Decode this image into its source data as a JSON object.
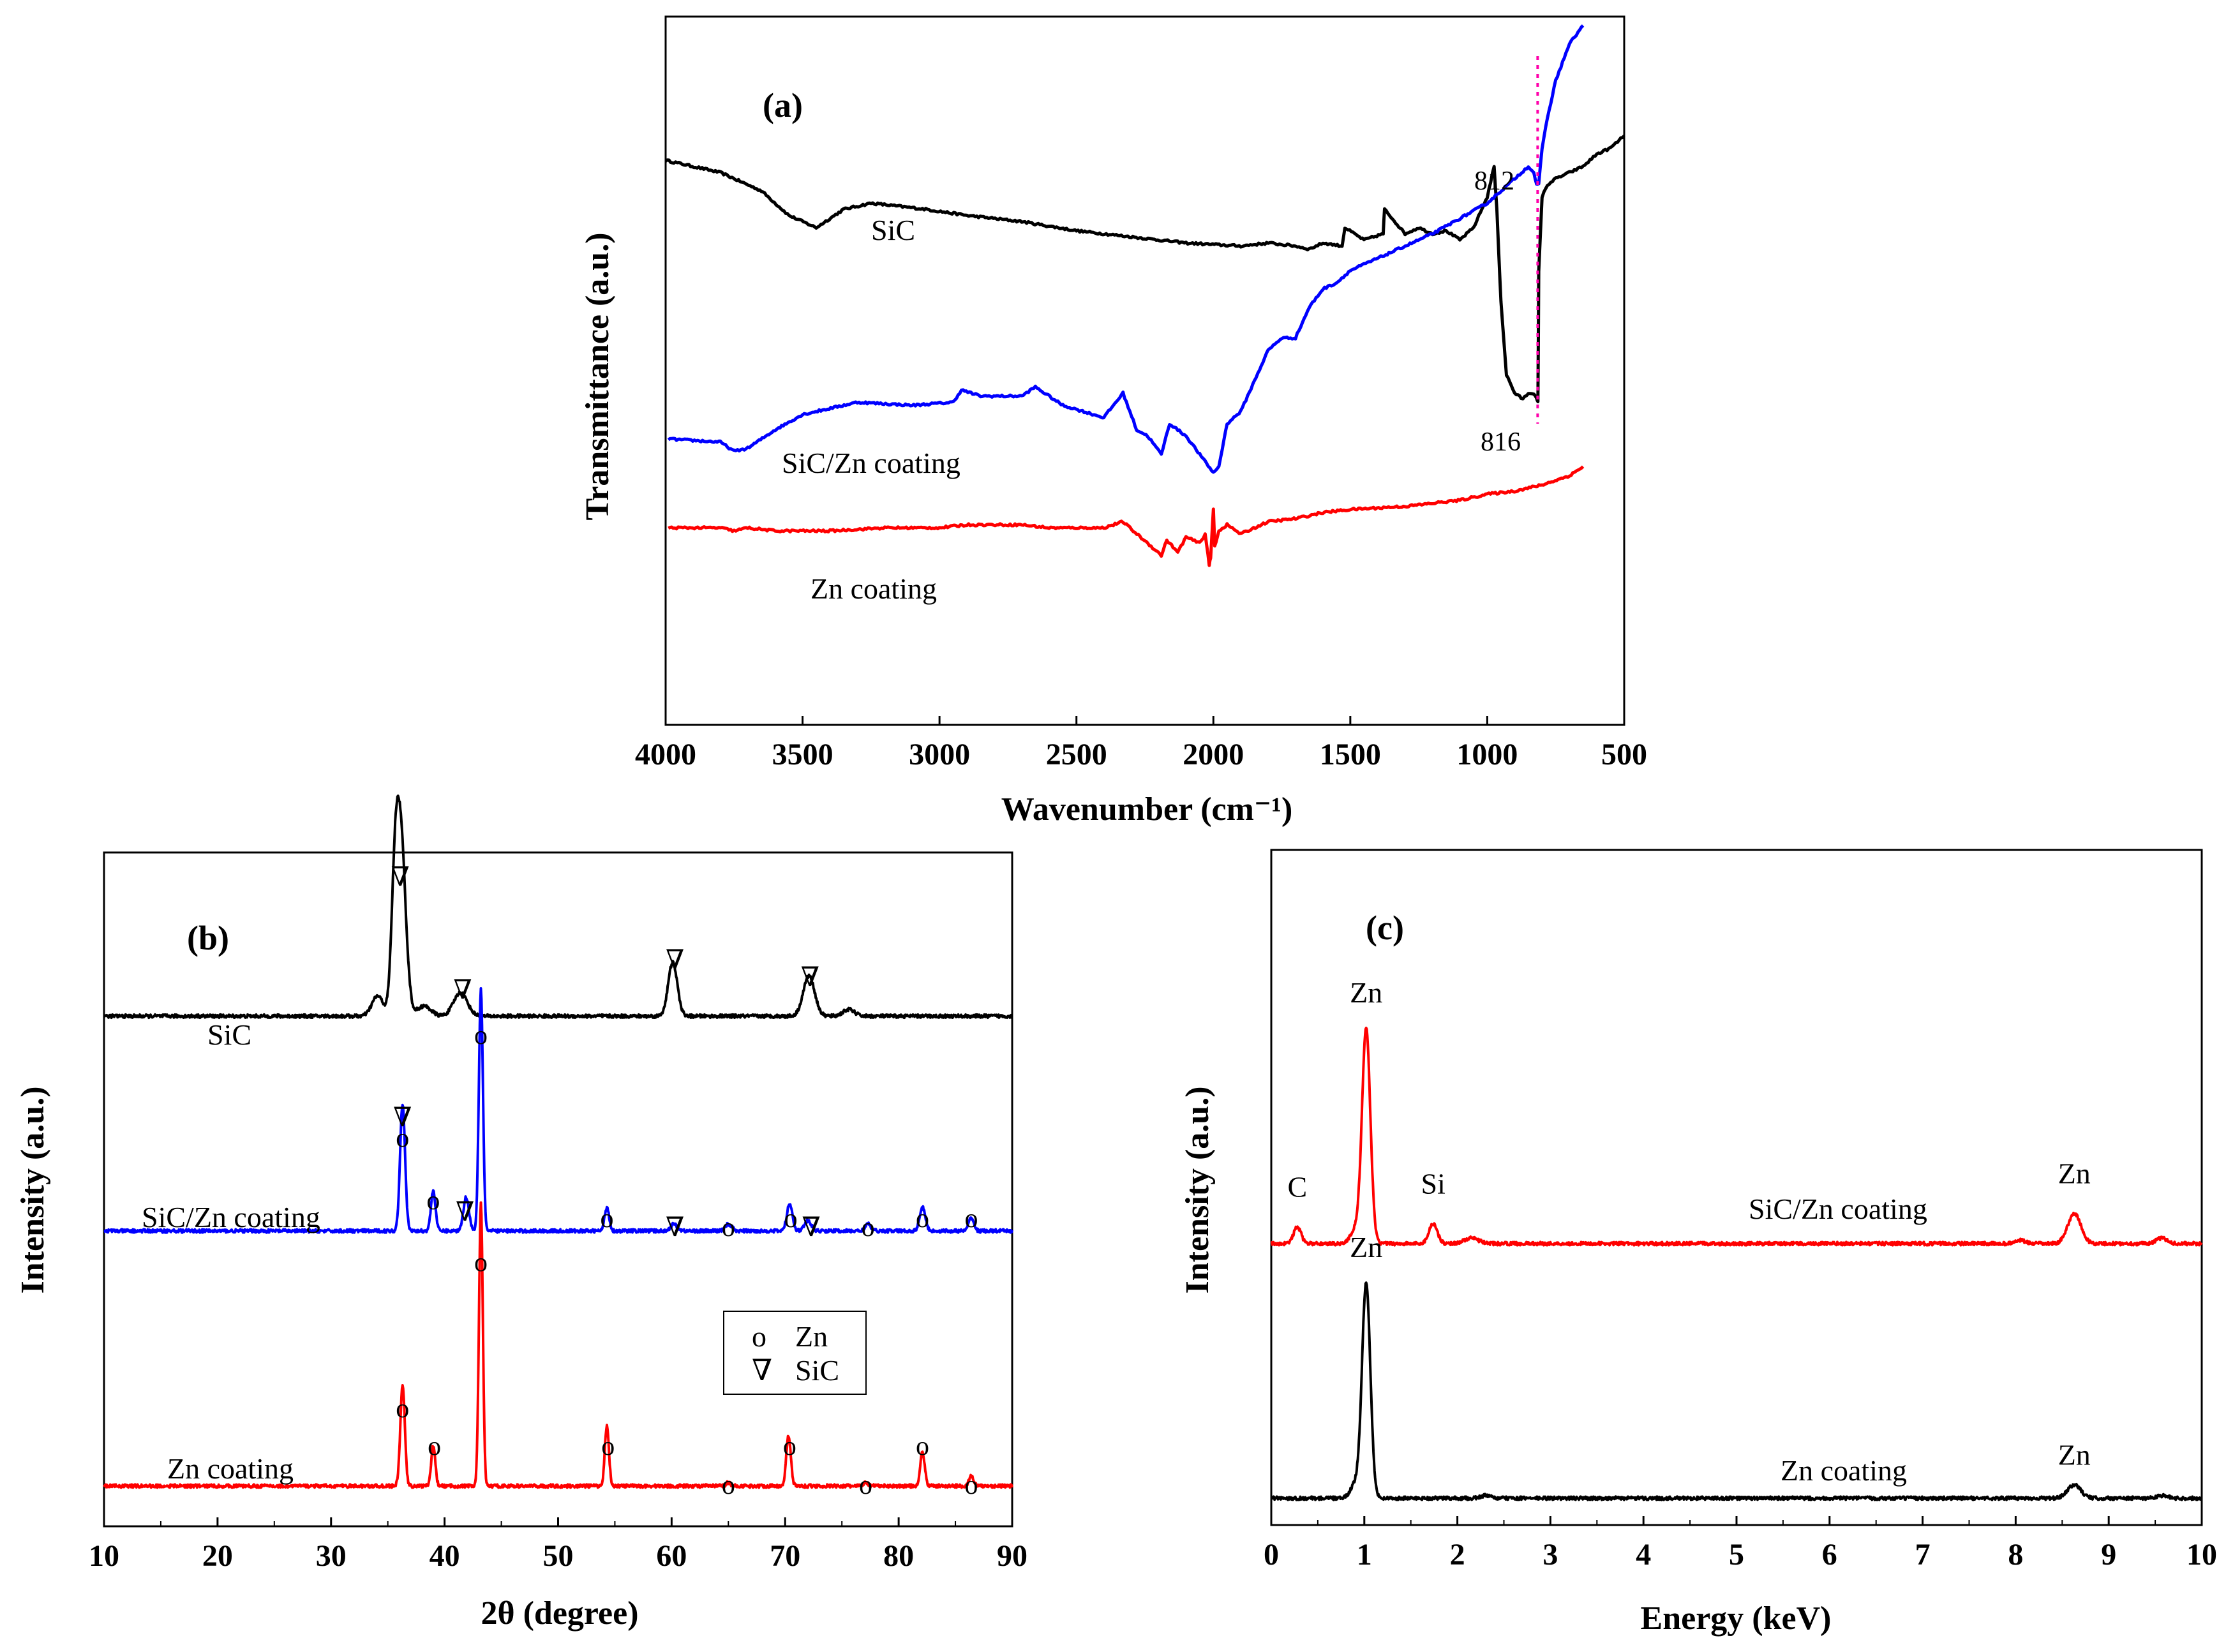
{
  "chart_data": [
    {
      "id": "a",
      "type": "line",
      "panel_label": "(a)",
      "xlabel": "Wavenumber (cm⁻¹)",
      "ylabel": "Transmittance (a.u.)",
      "xlim": [
        4000,
        500
      ],
      "x_ticks": [
        "4000",
        "3500",
        "3000",
        "2500",
        "2000",
        "1500",
        "1000",
        "500"
      ],
      "ylim": [
        0,
        100
      ],
      "series": [
        {
          "name": "SiC",
          "color": "#000000",
          "x": [
            4000,
            3800,
            3650,
            3550,
            3450,
            3350,
            3250,
            3050,
            2900,
            2700,
            2500,
            2300,
            2100,
            1900,
            1800,
            1700,
            1650,
            1600,
            1530,
            1520,
            1450,
            1380,
            1375,
            1300,
            1250,
            1200,
            1150,
            1100,
            1050,
            1000,
            975,
            965,
            950,
            930,
            900,
            870,
            850,
            830,
            820,
            815,
            812,
            800,
            780,
            750,
            700,
            650,
            600,
            550,
            500
          ],
          "y": [
            78,
            76,
            73,
            69,
            67,
            70,
            71,
            70,
            69,
            68,
            66.5,
            65.5,
            64.5,
            64,
            64.5,
            64,
            63.5,
            64.5,
            64,
            67,
            65,
            66,
            70,
            66,
            67,
            66,
            66.5,
            65,
            67,
            72,
            77,
            70,
            55,
            43,
            40,
            39,
            40,
            40,
            39,
            38.5,
            60,
            72,
            74,
            75,
            76,
            77,
            79,
            80,
            82
          ]
        },
        {
          "name": "SiC/Zn coating",
          "color": "#0000ff",
          "x": [
            3990,
            3800,
            3750,
            3700,
            3600,
            3500,
            3300,
            3100,
            2950,
            2920,
            2850,
            2700,
            2650,
            2550,
            2400,
            2330,
            2280,
            2240,
            2190,
            2160,
            2100,
            2050,
            2000,
            1980,
            1950,
            1900,
            1850,
            1800,
            1750,
            1700,
            1650,
            1600,
            1550,
            1500,
            1450,
            1400,
            1300,
            1200,
            1100,
            1000,
            900,
            850,
            830,
            820,
            812,
            800,
            780,
            750,
            700,
            650
          ],
          "y": [
            32.5,
            32,
            30.5,
            31,
            34,
            36.5,
            38.5,
            38,
            38.5,
            40.5,
            39.5,
            39.5,
            41,
            38,
            36,
            40,
            34,
            33,
            30,
            35,
            33,
            30,
            27,
            28,
            35,
            37,
            42,
            47,
            49,
            49,
            54,
            57,
            58,
            60,
            61,
            62,
            64,
            66,
            68.5,
            71,
            75,
            77,
            76,
            74,
            74,
            80,
            85,
            91,
            97,
            100
          ]
        },
        {
          "name": "Zn coating",
          "color": "#ff0000",
          "x": [
            3990,
            3800,
            3750,
            3700,
            3600,
            3400,
            3200,
            3000,
            2900,
            2700,
            2600,
            2400,
            2330,
            2280,
            2240,
            2190,
            2170,
            2130,
            2100,
            2050,
            2030,
            2015,
            2010,
            2000,
            1995,
            1980,
            1950,
            1900,
            1800,
            1700,
            1600,
            1500,
            1300,
            1100,
            1000,
            900,
            800,
            700,
            650
          ],
          "y": [
            18,
            18,
            17.5,
            18,
            17.5,
            17.5,
            18,
            18,
            18.5,
            18.5,
            18,
            18,
            19,
            17,
            15.5,
            13.5,
            16,
            14,
            16.5,
            15.5,
            17,
            12,
            13,
            21,
            15,
            17.5,
            18.5,
            17,
            19,
            19.5,
            20.5,
            21,
            21.5,
            22.5,
            23.5,
            24,
            25,
            26.5,
            28
          ]
        }
      ],
      "annotations": [
        {
          "text": "812",
          "x": 812
        },
        {
          "text": "816",
          "x": 816
        }
      ],
      "reference_line_x": 816
    },
    {
      "id": "b",
      "type": "line",
      "panel_label": "(b)",
      "xlabel": "2θ (degree)",
      "ylabel": "Intensity (a.u.)",
      "xlim": [
        10,
        90
      ],
      "x_ticks": [
        "10",
        "20",
        "30",
        "40",
        "50",
        "60",
        "70",
        "80",
        "90"
      ],
      "ylim": [
        0,
        100
      ],
      "baselines": [
        76,
        44,
        6
      ],
      "series": [
        {
          "name": "SiC",
          "color": "#000000",
          "baseline": 76,
          "peaks": [
            [
              34.1,
              3,
              0.5
            ],
            [
              35.6,
              12,
              0.3
            ],
            [
              36.1,
              28,
              0.45
            ],
            [
              38.2,
              1.5,
              0.6
            ],
            [
              41.4,
              3.5,
              0.6
            ],
            [
              60.1,
              8,
              0.4
            ],
            [
              72.1,
              6,
              0.5
            ],
            [
              75.6,
              1,
              0.5
            ]
          ]
        },
        {
          "name": "SiC/Zn coating",
          "color": "#0000ff",
          "baseline": 44,
          "peaks": [
            [
              36.3,
              19,
              0.22
            ],
            [
              39.0,
              6,
              0.2
            ],
            [
              41.9,
              5,
              0.25
            ],
            [
              43.2,
              36,
              0.18
            ],
            [
              54.3,
              3.5,
              0.2
            ],
            [
              60.2,
              1,
              0.3
            ],
            [
              65.0,
              1,
              0.3
            ],
            [
              70.4,
              4,
              0.25
            ],
            [
              72.0,
              1.5,
              0.3
            ],
            [
              77.3,
              1,
              0.25
            ],
            [
              82.1,
              3.5,
              0.25
            ],
            [
              86.4,
              2,
              0.22
            ]
          ]
        },
        {
          "name": "Zn coating",
          "color": "#ff0000",
          "baseline": 6,
          "peaks": [
            [
              36.3,
              15,
              0.2
            ],
            [
              39.0,
              6,
              0.18
            ],
            [
              43.2,
              42,
              0.17
            ],
            [
              54.3,
              9,
              0.18
            ],
            [
              65.0,
              0.5,
              0.2
            ],
            [
              70.3,
              7.5,
              0.2
            ],
            [
              77.1,
              0.5,
              0.2
            ],
            [
              82.1,
              5,
              0.2
            ],
            [
              86.4,
              1.5,
              0.2
            ]
          ]
        }
      ],
      "markers": [
        {
          "symbol": "∇",
          "x": 36.1,
          "level": 1
        },
        {
          "symbol": "∇",
          "x": 41.6,
          "level": 2
        },
        {
          "symbol": "∇",
          "x": 60.3,
          "level": 3
        },
        {
          "symbol": "∇",
          "x": 72.2,
          "level": 4
        },
        {
          "symbol": "∇",
          "x": 36.3,
          "level": 5
        },
        {
          "symbol": "o",
          "x": 36.3,
          "level": 6
        },
        {
          "symbol": "o",
          "x": 43.2,
          "level": 7
        },
        {
          "symbol": "o",
          "x": 39.0,
          "level": 8
        },
        {
          "symbol": "∇",
          "x": 41.8,
          "level": 9
        },
        {
          "symbol": "o",
          "x": 54.3,
          "level": 10
        },
        {
          "symbol": "∇",
          "x": 60.3,
          "level": 11
        },
        {
          "symbol": "o",
          "x": 65.0,
          "level": 11
        },
        {
          "symbol": "o",
          "x": 70.5,
          "level": 10
        },
        {
          "symbol": "∇",
          "x": 72.3,
          "level": 11
        },
        {
          "symbol": "o",
          "x": 77.3,
          "level": 11
        },
        {
          "symbol": "o",
          "x": 82.1,
          "level": 10
        },
        {
          "symbol": "o",
          "x": 86.4,
          "level": 10
        },
        {
          "symbol": "o",
          "x": 43.2,
          "level": 12
        },
        {
          "symbol": "o",
          "x": 36.3,
          "level": 13
        },
        {
          "symbol": "o",
          "x": 39.1,
          "level": 14
        },
        {
          "symbol": "o",
          "x": 54.4,
          "level": 14
        },
        {
          "symbol": "o",
          "x": 65.0,
          "level": 15
        },
        {
          "symbol": "o",
          "x": 70.4,
          "level": 14
        },
        {
          "symbol": "o",
          "x": 77.1,
          "level": 15
        },
        {
          "symbol": "o",
          "x": 82.1,
          "level": 14
        },
        {
          "symbol": "o",
          "x": 86.4,
          "level": 15
        }
      ],
      "legend": [
        {
          "symbol": "o",
          "label": "Zn"
        },
        {
          "symbol": "∇",
          "label": "SiC"
        }
      ]
    },
    {
      "id": "c",
      "type": "line",
      "panel_label": "(c)",
      "xlabel": "Energy (keV)",
      "ylabel": "Intensity (a.u.)",
      "xlim": [
        0,
        10
      ],
      "x_ticks": [
        "0",
        "1",
        "2",
        "3",
        "4",
        "5",
        "6",
        "7",
        "8",
        "9",
        "10"
      ],
      "ylim": [
        0,
        100
      ],
      "series": [
        {
          "name": "SiC/Zn coating",
          "color": "#ff0000",
          "baseline": 42,
          "peaks": [
            [
              0.28,
              2.5,
              0.04
            ],
            [
              0.9,
              2,
              0.05
            ],
            [
              1.02,
              32,
              0.045
            ],
            [
              1.74,
              3,
              0.045
            ],
            [
              2.15,
              0.8,
              0.08
            ],
            [
              8.05,
              0.5,
              0.05
            ],
            [
              8.63,
              4.5,
              0.07
            ],
            [
              9.57,
              0.8,
              0.06
            ]
          ]
        },
        {
          "name": "Zn coating",
          "color": "#000000",
          "baseline": 4,
          "peaks": [
            [
              0.9,
              2,
              0.05
            ],
            [
              1.02,
              32,
              0.045
            ],
            [
              2.3,
              0.4,
              0.05
            ],
            [
              8.63,
              2,
              0.07
            ],
            [
              9.57,
              0.4,
              0.06
            ]
          ]
        }
      ],
      "peak_labels": [
        {
          "text": "C",
          "x": 0.28,
          "y": 49
        },
        {
          "text": "Zn",
          "x": 1.02,
          "y": 78
        },
        {
          "text": "Si",
          "x": 1.74,
          "y": 49.5
        },
        {
          "text": "Zn",
          "x": 8.63,
          "y": 51
        },
        {
          "text": "Zn",
          "x": 1.02,
          "y": 40
        },
        {
          "text": "Zn",
          "x": 8.63,
          "y": 9
        }
      ]
    }
  ],
  "series_labels": {
    "a_sic": "SiC",
    "a_siczn": "SiC/Zn coating",
    "a_zn": "Zn coating",
    "b_sic": "SiC",
    "b_siczn": "SiC/Zn coating",
    "b_zn": "Zn coating",
    "c_siczn": "SiC/Zn coating",
    "c_zn": "Zn coating"
  }
}
